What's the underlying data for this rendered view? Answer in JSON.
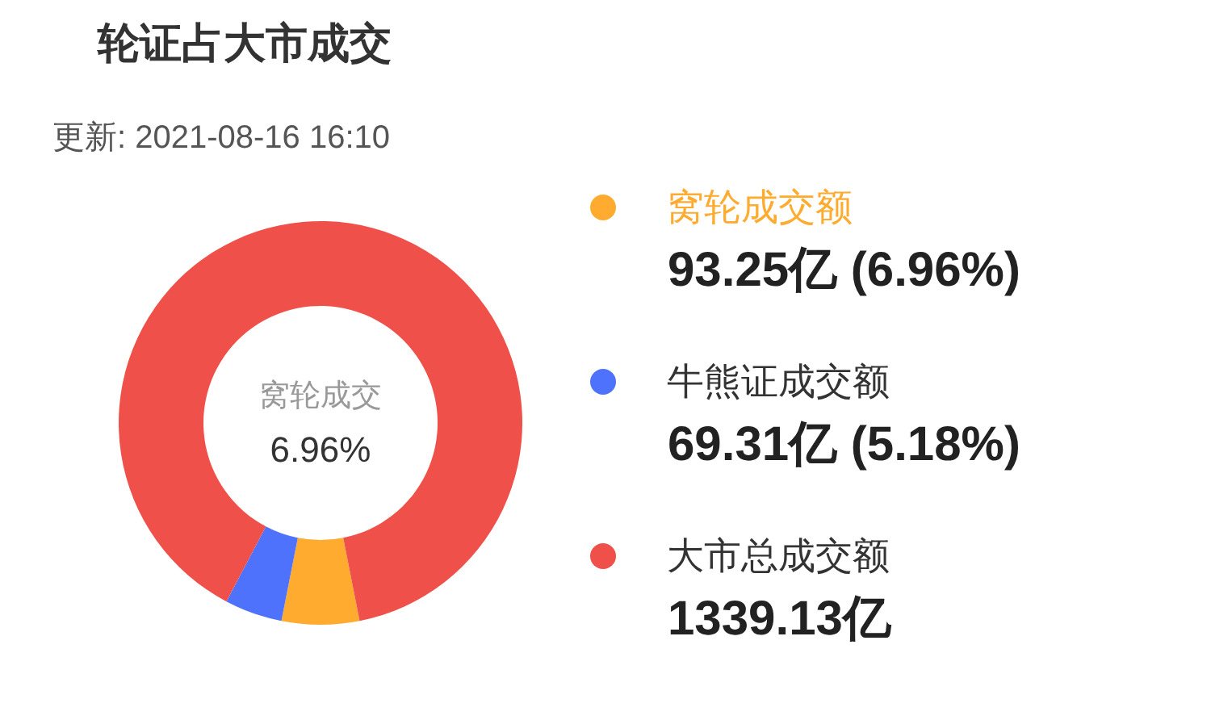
{
  "chart_data": {
    "type": "donut",
    "title": "轮证占大市成交",
    "subtitle": "更新: 2021-08-16 16:10",
    "categories": [
      "窝轮成交额",
      "牛熊证成交额",
      "大市总成交额"
    ],
    "values": [
      93.25,
      69.31,
      1339.13
    ],
    "colors": [
      "#ffab30",
      "#4f72fc",
      "#f0504a"
    ],
    "value_labels": [
      "93.25亿 (6.96%)",
      "69.31亿 (5.18%)",
      "1339.13亿"
    ],
    "annotations": [
      "窝轮成交",
      "6.96%"
    ],
    "legend": "right"
  }
}
